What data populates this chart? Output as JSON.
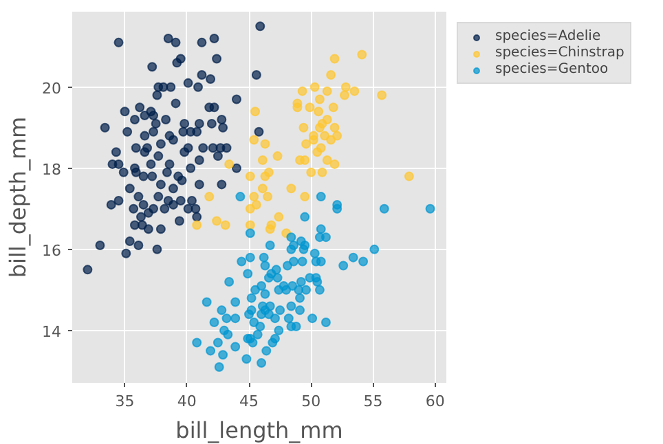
{
  "chart_data": {
    "type": "scatter",
    "xlabel": "bill_length_mm",
    "ylabel": "bill_depth_mm",
    "xlim": [
      30.76,
      60.9
    ],
    "ylim": [
      12.71,
      21.86
    ],
    "xticks": [
      35,
      40,
      45,
      50,
      55,
      60
    ],
    "yticks": [
      14,
      16,
      18,
      20
    ],
    "grid": true,
    "legend": "top right",
    "marker": "circle",
    "series": [
      {
        "name": "species=Adelie",
        "color": "#00204a",
        "x": [
          34.5,
          38.5,
          39.1,
          41.2,
          42.2,
          42.4,
          39.5,
          39.2,
          37.2,
          41.2,
          40.1,
          40.9,
          41.9,
          37.7,
          38.1,
          38.7,
          37.6,
          39.1,
          44.0,
          35.0,
          36.2,
          37.1,
          37.3,
          36.6,
          35.8,
          38.3,
          39.8,
          41.0,
          42.0,
          42.8,
          41.8,
          42.2,
          33.4,
          37.5,
          39.7,
          40.3,
          40.8,
          42.9,
          35.2,
          36.6,
          37.3,
          38.6,
          38.9,
          37.9,
          36.8,
          35.9,
          36.6,
          40.1,
          41.3,
          42.1,
          42.7,
          43.2,
          39.8,
          34.3,
          34.0,
          34.5,
          35.8,
          37.1,
          37.7,
          38.6,
          40.3,
          41.0,
          42.5,
          44.0,
          34.9,
          35.9,
          36.5,
          37.2,
          38.4,
          39.3,
          39.6,
          37.9,
          38.9,
          41.0,
          42.8,
          35.4,
          34.5,
          33.9,
          36.1,
          37.7,
          38.5,
          39.5,
          40.4,
          35.7,
          36.5,
          37.3,
          38.2,
          38.9,
          40.1,
          40.7,
          36.9,
          36.3,
          40.8,
          39.4,
          35.8,
          36.4,
          36.9,
          37.9,
          35.4,
          36.1,
          37.6,
          35.1,
          33.0,
          32.0,
          45.8,
          45.6,
          45.9
        ],
        "values": [
          21.1,
          21.2,
          21.1,
          21.1,
          21.2,
          20.7,
          20.7,
          20.6,
          20.5,
          20.3,
          20.1,
          20.0,
          20.2,
          20.0,
          20.0,
          20.0,
          19.8,
          19.6,
          19.7,
          19.4,
          19.5,
          19.4,
          19.3,
          19.3,
          19.2,
          19.2,
          19.1,
          19.1,
          19.1,
          19.2,
          19.5,
          19.5,
          19.0,
          19.1,
          18.9,
          18.9,
          18.9,
          19.0,
          18.9,
          18.8,
          18.9,
          18.8,
          18.7,
          18.6,
          18.5,
          18.5,
          18.4,
          18.5,
          18.5,
          18.5,
          18.5,
          18.5,
          18.4,
          18.4,
          18.1,
          18.1,
          18.0,
          18.1,
          18.3,
          18.1,
          18.0,
          18.2,
          18.3,
          18.0,
          17.9,
          17.9,
          17.8,
          17.8,
          17.9,
          17.8,
          17.7,
          17.6,
          17.5,
          17.6,
          17.6,
          17.5,
          17.2,
          17.1,
          17.3,
          17.3,
          17.2,
          17.2,
          17.2,
          17.0,
          17.1,
          17.0,
          17.0,
          17.1,
          17.0,
          17.0,
          16.9,
          16.8,
          16.8,
          16.7,
          16.6,
          16.6,
          16.5,
          16.5,
          16.2,
          16.1,
          16.0,
          15.9,
          16.1,
          15.5,
          18.9,
          20.3,
          21.5
        ]
      },
      {
        "name": "species=Chinstrap",
        "color": "#fec630",
        "x": [
          54.1,
          51.9,
          51.6,
          50.3,
          49.3,
          51.3,
          52.8,
          52.7,
          53.5,
          55.7,
          50.7,
          48.9,
          48.9,
          49.9,
          51.8,
          50.6,
          45.5,
          50.9,
          51.3,
          49.4,
          50.7,
          51.9,
          50.2,
          51.1,
          52.1,
          50.2,
          51.6,
          45.4,
          49.6,
          46.3,
          50.8,
          50.5,
          47.3,
          46.1,
          49.1,
          49.5,
          51.3,
          51.9,
          43.4,
          50.0,
          50.9,
          46.6,
          46.3,
          45.1,
          57.9,
          46.1,
          48.4,
          41.8,
          45.4,
          46.5,
          49.5,
          45.6,
          45.1,
          47.4,
          42.4,
          40.8,
          43.1,
          45.1,
          46.8,
          46.7,
          48.0
        ],
        "values": [
          20.8,
          20.7,
          20.3,
          20.0,
          19.9,
          19.9,
          20.0,
          19.8,
          19.9,
          19.8,
          19.7,
          19.6,
          19.5,
          19.5,
          19.5,
          19.4,
          19.4,
          19.1,
          19.2,
          19.0,
          19.0,
          19.0,
          18.8,
          18.8,
          18.8,
          18.7,
          18.7,
          18.7,
          18.6,
          18.6,
          18.5,
          18.4,
          18.3,
          18.2,
          18.2,
          18.2,
          18.2,
          18.1,
          18.1,
          17.9,
          17.9,
          17.9,
          17.8,
          17.8,
          17.8,
          17.5,
          17.5,
          17.3,
          17.3,
          17.3,
          17.3,
          17.1,
          17.0,
          16.8,
          16.7,
          16.6,
          16.6,
          16.6,
          16.6,
          16.5,
          16.4
        ]
      },
      {
        "name": "species=Gentoo",
        "color": "#0096d0",
        "x": [
          44.3,
          50.8,
          52.1,
          52.1,
          55.9,
          59.6,
          49.5,
          50.8,
          45.1,
          48.4,
          51.2,
          50.7,
          49.2,
          48.6,
          46.7,
          49.5,
          48.4,
          49.4,
          50.3,
          55.1,
          45.1,
          46.2,
          53.4,
          44.4,
          48.6,
          49.3,
          50.4,
          50.8,
          54.2,
          46.3,
          48.1,
          52.6,
          47.2,
          46.8,
          44.9,
          47.3,
          46.6,
          49.9,
          50.4,
          43.4,
          49.2,
          50.5,
          46.0,
          47.8,
          48.5,
          45.5,
          47.4,
          48.0,
          49.0,
          49.6,
          50.7,
          46.3,
          45.2,
          49.1,
          41.6,
          43.9,
          46.1,
          46.7,
          48.4,
          45.2,
          42.8,
          46.3,
          47.5,
          49.1,
          45.0,
          46.0,
          46.6,
          43.2,
          43.9,
          47.1,
          48.2,
          50.1,
          42.2,
          51.2,
          45.4,
          45.9,
          48.4,
          48.8,
          43.0,
          47.4,
          43.3,
          45.7,
          44.9,
          45.1,
          47.1,
          40.8,
          42.5,
          45.3,
          46.9,
          43.9,
          41.9,
          46.4,
          42.9,
          44.8,
          46.0,
          42.6
        ],
        "values": [
          17.3,
          17.3,
          17.1,
          17.0,
          17.0,
          17.0,
          16.8,
          16.5,
          16.4,
          16.3,
          16.3,
          16.3,
          16.2,
          16.1,
          16.1,
          16.1,
          16.0,
          16.0,
          15.9,
          16.0,
          15.8,
          15.8,
          15.8,
          15.7,
          15.7,
          15.7,
          15.7,
          15.7,
          15.7,
          15.6,
          15.6,
          15.6,
          15.5,
          15.4,
          15.4,
          15.3,
          15.3,
          15.3,
          15.3,
          15.2,
          15.2,
          15.2,
          15.1,
          15.1,
          15.1,
          15.0,
          15.0,
          15.0,
          15.0,
          15.0,
          15.0,
          14.9,
          14.8,
          14.8,
          14.7,
          14.7,
          14.6,
          14.6,
          14.6,
          14.5,
          14.5,
          14.5,
          14.5,
          14.5,
          14.4,
          14.4,
          14.4,
          14.3,
          14.3,
          14.3,
          14.3,
          14.3,
          14.2,
          14.2,
          14.2,
          14.1,
          14.1,
          14.1,
          14.0,
          14.0,
          13.9,
          13.9,
          13.8,
          13.8,
          13.8,
          13.7,
          13.7,
          13.7,
          13.7,
          13.6,
          13.5,
          13.5,
          13.4,
          13.3,
          13.2,
          13.1
        ]
      }
    ]
  }
}
